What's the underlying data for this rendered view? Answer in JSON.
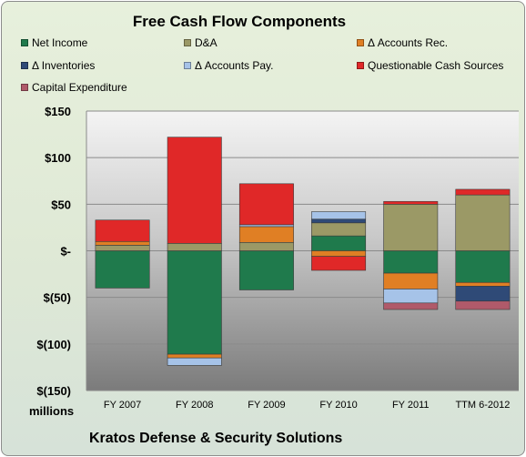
{
  "chart_data": {
    "type": "bar",
    "stacked": true,
    "title": "Free Cash Flow Components",
    "ylabel": "millions",
    "footer": "Kratos Defense & Security Solutions",
    "ylim": [
      -150,
      150
    ],
    "yticks": [
      150,
      100,
      50,
      0,
      -50,
      -100,
      -150
    ],
    "ytick_labels": [
      "$150",
      "$100",
      "$50",
      "$-",
      "$(50)",
      "$(100)",
      "$(150)"
    ],
    "categories": [
      "FY 2007",
      "FY 2008",
      "FY 2009",
      "FY 2010",
      "FY 2011",
      "TTM 6-2012"
    ],
    "legend_position": "top",
    "grid": true,
    "series": [
      {
        "name": "Net Income",
        "color": "#1f7a4c",
        "values": [
          -40,
          -111,
          -42,
          16,
          -24,
          -34
        ]
      },
      {
        "name": "D&A",
        "color": "#9b9966",
        "values": [
          6,
          8,
          9,
          14,
          50,
          60
        ]
      },
      {
        "name": "Δ Accounts Rec.",
        "color": "#e07f24",
        "values": [
          4,
          -4,
          17,
          -6,
          -17,
          -4
        ]
      },
      {
        "name": "Δ Inventories",
        "color": "#2f4a77",
        "values": [
          0,
          0,
          0,
          4,
          0,
          -16
        ]
      },
      {
        "name": "Δ Accounts Pay.",
        "color": "#a6c3e8",
        "values": [
          0,
          -8,
          2,
          8,
          -15,
          0
        ]
      },
      {
        "name": "Questionable Cash Sources",
        "color": "#e02828",
        "values": [
          23,
          114,
          44,
          -15,
          3,
          6
        ]
      },
      {
        "name": "Capital Expenditure",
        "color": "#b05a6a",
        "values": [
          0,
          0,
          0,
          0,
          -7,
          -9
        ]
      }
    ]
  }
}
